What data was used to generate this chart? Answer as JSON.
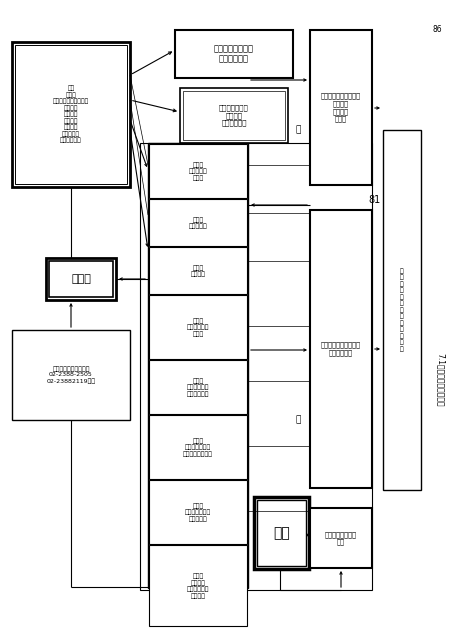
{
  "bg": "#ffffff",
  "fig_w": 4.52,
  "fig_h": 6.4,
  "dpi": 100,
  "page_num": "86",
  "page_label": "81",
  "title_label": "7.1國家緊急應變統疑圖"
}
